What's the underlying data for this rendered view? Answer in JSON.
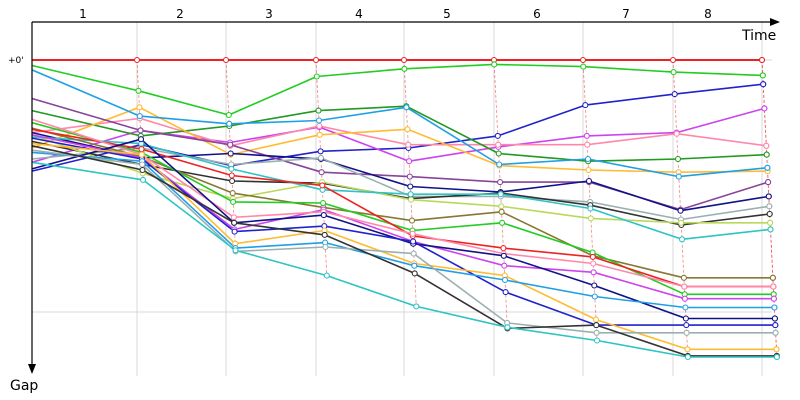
{
  "chart_data": {
    "type": "line",
    "title": "",
    "xlabel": "Time",
    "ylabel": "Gap",
    "y_tick_label": "+0'",
    "laps": [
      "1",
      "2",
      "3",
      "4",
      "5",
      "6",
      "7",
      "8"
    ],
    "leader_color": "#ee2222",
    "grid": true,
    "legend": "none",
    "series": [
      {
        "color": "#ee2222",
        "gaps": [
          0.0,
          0.0,
          0.0,
          0.0,
          0.0,
          0.0,
          0.0,
          0.0,
          0.0,
          0.0
        ]
      },
      {
        "color": "#22cc22",
        "gaps": [
          0.5,
          2.8,
          5.0,
          1.5,
          0.8,
          0.4,
          0.6,
          1.1,
          1.4,
          1.4
        ]
      },
      {
        "color": "#2222cc",
        "gaps": [
          10.1,
          7.7,
          9.6,
          8.3,
          8.0,
          6.9,
          4.1,
          3.1,
          2.2,
          2.2
        ]
      },
      {
        "color": "#cc44ee",
        "gaps": [
          9.3,
          6.4,
          7.5,
          6.1,
          9.2,
          7.9,
          6.9,
          6.6,
          4.4,
          4.4
        ]
      },
      {
        "color": "#ff88aa",
        "gaps": [
          6.6,
          5.3,
          7.8,
          6.0,
          7.7,
          7.7,
          7.7,
          6.7,
          7.8,
          7.8
        ]
      },
      {
        "color": "#229922",
        "gaps": [
          4.6,
          6.9,
          6.0,
          4.6,
          4.2,
          8.5,
          9.2,
          9.0,
          8.6,
          8.6
        ]
      },
      {
        "color": "#ffbb33",
        "gaps": [
          8.0,
          4.3,
          8.6,
          6.8,
          6.3,
          9.6,
          10.0,
          10.2,
          10.1,
          10.1
        ]
      },
      {
        "color": "#1f9fe5",
        "gaps": [
          0.9,
          5.1,
          5.8,
          5.5,
          4.3,
          9.5,
          9.0,
          10.6,
          9.8,
          9.8
        ]
      },
      {
        "color": "#884499",
        "gaps": [
          3.5,
          6.4,
          7.7,
          10.2,
          10.6,
          11.1,
          11.1,
          13.6,
          11.1,
          11.1
        ]
      },
      {
        "color": "#111188",
        "gaps": [
          6.6,
          8.9,
          8.5,
          9.0,
          11.5,
          12.0,
          11.0,
          13.7,
          12.4,
          12.4
        ]
      },
      {
        "color": "#9ab0b0",
        "gaps": [
          9.0,
          8.0,
          9.5,
          8.9,
          12.4,
          12.4,
          12.9,
          14.5,
          13.3,
          13.3
        ]
      },
      {
        "color": "#333333",
        "gaps": [
          7.4,
          9.5,
          11.0,
          11.2,
          12.6,
          12.1,
          13.2,
          15.0,
          14.0,
          14.0
        ]
      },
      {
        "color": "#bbd85a",
        "gaps": [
          6.8,
          10.3,
          12.6,
          11.1,
          12.7,
          13.3,
          14.4,
          14.8,
          14.8,
          14.8
        ]
      },
      {
        "color": "#2ec4c4",
        "gaps": [
          7.0,
          7.6,
          9.9,
          11.8,
          12.2,
          12.2,
          13.5,
          16.3,
          15.4,
          15.4
        ]
      },
      {
        "color": "#887733",
        "gaps": [
          6.2,
          8.8,
          12.1,
          13.4,
          14.6,
          13.8,
          17.8,
          19.8,
          19.8,
          19.8
        ]
      },
      {
        "color": "#22cc22",
        "gaps": [
          5.7,
          8.4,
          12.9,
          13.0,
          15.5,
          14.8,
          17.5,
          21.3,
          21.3,
          21.3
        ]
      },
      {
        "color": "#ee2222",
        "gaps": [
          6.3,
          8.1,
          10.5,
          11.4,
          16.0,
          17.1,
          17.9,
          20.6,
          20.6,
          20.6
        ]
      },
      {
        "color": "#cc44ee",
        "gaps": [
          6.8,
          8.9,
          15.4,
          13.6,
          16.5,
          18.7,
          19.3,
          21.7,
          21.7,
          21.7
        ]
      },
      {
        "color": "#ff88aa",
        "gaps": [
          5.4,
          8.6,
          14.3,
          13.8,
          15.8,
          17.6,
          18.5,
          20.6,
          20.6,
          20.6
        ]
      },
      {
        "color": "#111188",
        "gaps": [
          9.9,
          7.2,
          14.8,
          14.1,
          16.7,
          17.8,
          20.5,
          23.5,
          23.5,
          23.5
        ]
      },
      {
        "color": "#2222cc",
        "gaps": [
          7.1,
          9.0,
          15.6,
          15.1,
          16.5,
          21.1,
          24.1,
          24.1,
          24.1,
          24.1
        ]
      },
      {
        "color": "#ffbb33",
        "gaps": [
          7.6,
          8.6,
          16.7,
          15.5,
          18.5,
          19.6,
          23.6,
          26.3,
          26.3,
          26.3
        ]
      },
      {
        "color": "#1f9fe5",
        "gaps": [
          8.4,
          9.2,
          17.1,
          16.6,
          18.7,
          20.0,
          21.5,
          22.5,
          22.5,
          22.5
        ]
      },
      {
        "color": "#9ab0b0",
        "gaps": [
          8.2,
          9.5,
          17.4,
          17.0,
          17.6,
          23.9,
          24.8,
          24.8,
          24.8,
          24.8
        ]
      },
      {
        "color": "#333333",
        "gaps": [
          7.8,
          10.0,
          14.8,
          15.9,
          19.4,
          24.4,
          24.1,
          26.9,
          26.9,
          26.9
        ]
      },
      {
        "color": "#2ec4c4",
        "gaps": [
          9.3,
          10.9,
          17.3,
          19.6,
          22.4,
          24.3,
          25.5,
          27.0,
          27.0,
          27.0
        ]
      }
    ]
  }
}
